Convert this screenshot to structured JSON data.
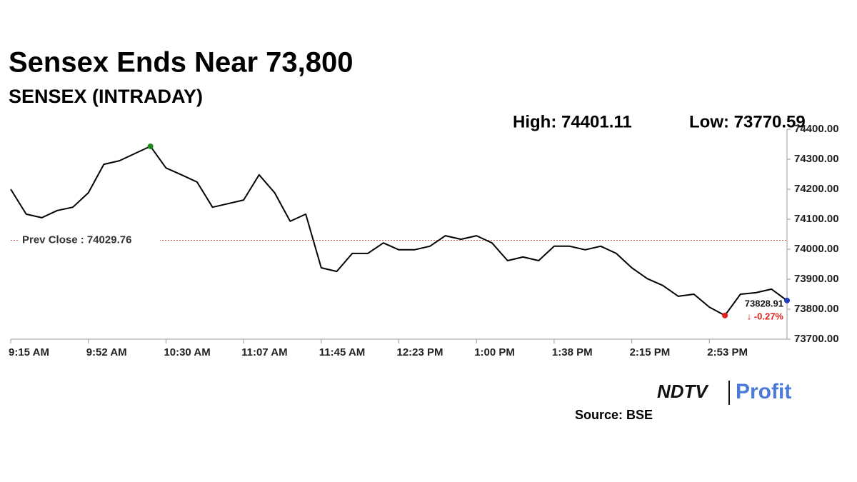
{
  "chart_data": {
    "type": "line",
    "title": "Sensex Ends Near 73,800",
    "subtitle": "SENSEX (INTRADAY)",
    "high_label": "High: 74401.11",
    "low_label": "Low: 73770.59",
    "change_label": "↓ -0.27%",
    "source": "Source: BSE",
    "logo": [
      "NDTV",
      "Profit"
    ],
    "prev_close": {
      "value": 74029.76,
      "label": "Prev Close : 74029.76",
      "color": "#d9534f"
    },
    "categories": [
      "9:15 AM",
      null,
      null,
      null,
      null,
      "9:52 AM",
      null,
      null,
      null,
      null,
      "10:30 AM",
      null,
      null,
      null,
      null,
      "11:07 AM",
      null,
      null,
      null,
      null,
      "11:45 AM",
      null,
      null,
      null,
      null,
      "12:23 PM",
      null,
      null,
      null,
      null,
      "1:00 PM",
      null,
      null,
      null,
      null,
      "1:38 PM",
      null,
      null,
      null,
      null,
      "2:15 PM",
      null,
      null,
      null,
      null,
      "2:53 PM",
      null,
      null,
      null,
      null,
      null
    ],
    "series": [
      {
        "name": "SENSEX",
        "color": "#000000",
        "values": [
          74200,
          74117,
          74105,
          74129,
          74140,
          74188,
          74283,
          74295,
          74319,
          74343,
          74271,
          74248,
          74224,
          74140,
          74152,
          74164,
          74248,
          74188,
          74093,
          74117,
          73938,
          73926,
          73986,
          73986,
          74021,
          73998,
          73998,
          74010,
          74045,
          74033,
          74045,
          74021,
          73962,
          73974,
          73962,
          74010,
          74010,
          73998,
          74010,
          73986,
          73938,
          73902,
          73879,
          73843,
          73850,
          73807,
          73779,
          73850,
          73855,
          73867,
          73828.91
        ]
      }
    ],
    "marker_colors": {
      "high": "#1a8a1a",
      "low": "#e0201c",
      "last": "#1f3fbf"
    },
    "ylim": [
      73700,
      74400
    ],
    "yticks": [
      {
        "value": 73700,
        "label": "73700.00"
      },
      {
        "value": 73800,
        "label": "73800.00"
      },
      {
        "value": 73900,
        "label": "73900.00"
      },
      {
        "value": 74000,
        "label": "74000.00"
      },
      {
        "value": 74100,
        "label": "74100.00"
      },
      {
        "value": 74200,
        "label": "74200.00"
      },
      {
        "value": 74300,
        "label": "74300.00"
      },
      {
        "value": 74400,
        "label": "74400.00"
      }
    ]
  }
}
